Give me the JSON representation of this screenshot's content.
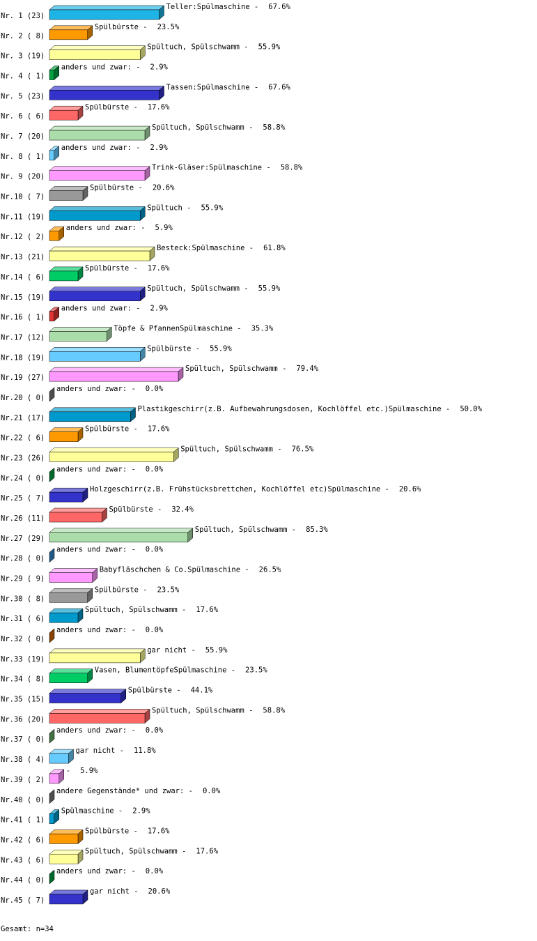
{
  "chart_data": {
    "type": "bar",
    "orientation": "horizontal",
    "categories": [
      "Nr. 1 (23)",
      "Nr. 2 ( 8)",
      "Nr. 3 (19)",
      "Nr. 4 ( 1)",
      "Nr. 5 (23)",
      "Nr. 6 ( 6)",
      "Nr. 7 (20)",
      "Nr. 8 ( 1)",
      "Nr. 9 (20)",
      "Nr.10 ( 7)",
      "Nr.11 (19)",
      "Nr.12 ( 2)",
      "Nr.13 (21)",
      "Nr.14 ( 6)",
      "Nr.15 (19)",
      "Nr.16 ( 1)",
      "Nr.17 (12)",
      "Nr.18 (19)",
      "Nr.19 (27)",
      "Nr.20 ( 0)",
      "Nr.21 (17)",
      "Nr.22 ( 6)",
      "Nr.23 (26)",
      "Nr.24 ( 0)",
      "Nr.25 ( 7)",
      "Nr.26 (11)",
      "Nr.27 (29)",
      "Nr.28 ( 0)",
      "Nr.29 ( 9)",
      "Nr.30 ( 8)",
      "Nr.31 ( 6)",
      "Nr.32 ( 0)",
      "Nr.33 (19)",
      "Nr.34 ( 8)",
      "Nr.35 (15)",
      "Nr.36 (20)",
      "Nr.37 ( 0)",
      "Nr.38 ( 4)",
      "Nr.39 ( 2)",
      "Nr.40 ( 0)",
      "Nr.41 ( 1)",
      "Nr.42 ( 6)",
      "Nr.43 ( 6)",
      "Nr.44 ( 0)",
      "Nr.45 ( 7)"
    ],
    "names": [
      "Teller:Spülmaschine -",
      "Spülbürste -",
      "Spültuch, Spülschwamm -",
      "anders und zwar: -",
      "Tassen:Spülmaschine -",
      "Spülbürste -",
      "Spültuch, Spülschwamm -",
      "anders und zwar: -",
      "Trink-Gläser:Spülmaschine -",
      "Spülbürste -",
      "Spültuch -",
      "anders und zwar: -",
      "Besteck:Spülmaschine -",
      "Spülbürste -",
      "Spültuch, Spülschwamm -",
      "anders und zwar: -",
      "Töpfe & PfannenSpülmaschine -",
      "Spülbürste -",
      "Spültuch, Spülschwamm -",
      "anders und zwar: -",
      "Plastikgeschirr(z.B. Aufbewahrungsdosen, Kochlöffel etc.)Spülmaschine -",
      "Spülbürste -",
      "Spültuch, Spülschwamm -",
      "anders und zwar: -",
      "Holzgeschirr(z.B. Frühstücksbrettchen, Kochlöffel etc)Spülmaschine -",
      "Spülbürste -",
      "Spültuch, Spülschwamm -",
      "anders und zwar: -",
      "Babyfläschchen & Co.Spülmaschine -",
      "Spülbürste -",
      "Spültuch, Spülschwamm -",
      "anders und zwar: -",
      "gar nicht -",
      "Vasen, BlumentöpfeSpülmaschine -",
      "Spülbürste -",
      "Spültuch, Spülschwamm -",
      "anders und zwar: -",
      "gar nicht -",
      "-",
      "andere Gegenstände* und zwar: -",
      "Spülmaschine -",
      "Spülbürste -",
      "Spültuch, Spülschwamm -",
      "anders und zwar: -",
      "gar nicht -"
    ],
    "values": [
      67.6,
      23.5,
      55.9,
      2.9,
      67.6,
      17.6,
      58.8,
      2.9,
      58.8,
      20.6,
      55.9,
      5.9,
      61.8,
      17.6,
      55.9,
      2.9,
      35.3,
      55.9,
      79.4,
      0.0,
      50.0,
      17.6,
      76.5,
      0.0,
      20.6,
      32.4,
      85.3,
      0.0,
      26.5,
      23.5,
      17.6,
      0.0,
      55.9,
      23.5,
      44.1,
      58.8,
      0.0,
      11.8,
      5.9,
      0.0,
      2.9,
      17.6,
      17.6,
      0.0,
      20.6
    ],
    "value_labels": [
      "67.6%",
      "23.5%",
      "55.9%",
      "2.9%",
      "67.6%",
      "17.6%",
      "58.8%",
      "2.9%",
      "58.8%",
      "20.6%",
      "55.9%",
      "5.9%",
      "61.8%",
      "17.6%",
      "55.9%",
      "2.9%",
      "35.3%",
      "55.9%",
      "79.4%",
      "0.0%",
      "50.0%",
      "17.6%",
      "76.5%",
      "0.0%",
      "20.6%",
      "32.4%",
      "85.3%",
      "0.0%",
      "26.5%",
      "23.5%",
      "17.6%",
      "0.0%",
      "55.9%",
      "23.5%",
      "44.1%",
      "58.8%",
      "0.0%",
      "11.8%",
      "5.9%",
      "0.0%",
      "2.9%",
      "17.6%",
      "17.6%",
      "0.0%",
      "20.6%"
    ],
    "colors": [
      "#1eb4e6",
      "#ff9900",
      "#ffff99",
      "#00a040",
      "#3333cc",
      "#ff6666",
      "#aaddaa",
      "#66ccff",
      "#ff99ff",
      "#999999",
      "#0099cc",
      "#ff9900",
      "#ffff99",
      "#00cc66",
      "#3333cc",
      "#dd3333",
      "#aaddaa",
      "#66ccff",
      "#ff99ff",
      "#777777",
      "#0099cc",
      "#ff9900",
      "#ffff99",
      "#00a040",
      "#3333cc",
      "#ff6666",
      "#aaddaa",
      "#3388cc",
      "#ff99ff",
      "#999999",
      "#0099cc",
      "#cc6600",
      "#ffff99",
      "#00cc66",
      "#3333cc",
      "#ff6666",
      "#66aa66",
      "#66ccff",
      "#ff99ff",
      "#777777",
      "#0099cc",
      "#ff9900",
      "#ffff99",
      "#00a040",
      "#3333cc"
    ],
    "footer": "Gesamt: n=34"
  }
}
